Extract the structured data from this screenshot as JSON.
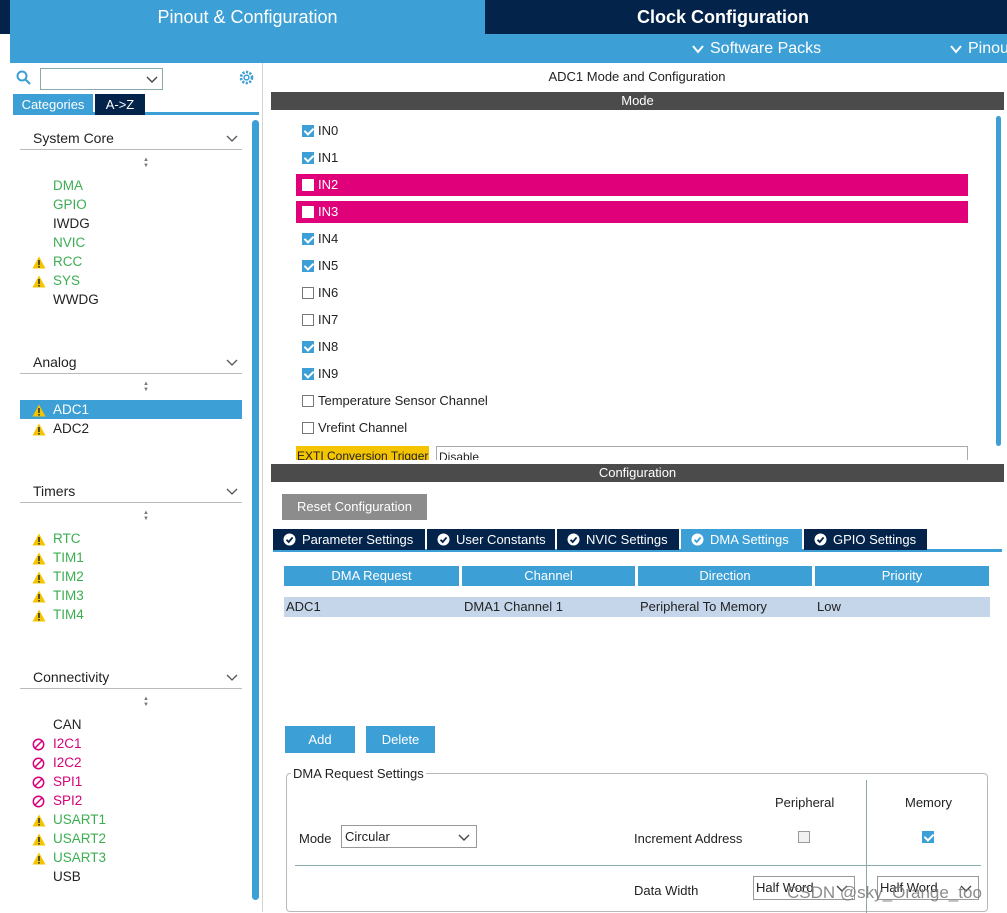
{
  "top_tabs": {
    "pinout": "Pinout & Configuration",
    "clock": "Clock Configuration",
    "project": ""
  },
  "sub_bar": {
    "software_packs": "Software Packs",
    "pinout": "Pinout"
  },
  "left": {
    "search": {
      "value": ""
    },
    "tabs": {
      "categories": "Categories",
      "az": "A->Z"
    },
    "groups": [
      {
        "title": "System Core",
        "items": [
          {
            "label": "DMA",
            "color": "green",
            "icon": ""
          },
          {
            "label": "GPIO",
            "color": "green",
            "icon": ""
          },
          {
            "label": "IWDG",
            "color": "black",
            "icon": ""
          },
          {
            "label": "NVIC",
            "color": "green",
            "icon": ""
          },
          {
            "label": "RCC",
            "color": "green",
            "icon": "warning-icon"
          },
          {
            "label": "SYS",
            "color": "green",
            "icon": "warning-icon"
          },
          {
            "label": "WWDG",
            "color": "black",
            "icon": ""
          }
        ]
      },
      {
        "title": "Analog",
        "items": [
          {
            "label": "ADC1",
            "color": "selected",
            "icon": "warning-icon"
          },
          {
            "label": "ADC2",
            "color": "black",
            "icon": "warning-icon"
          }
        ]
      },
      {
        "title": "Timers",
        "items": [
          {
            "label": "RTC",
            "color": "green",
            "icon": "warning-icon"
          },
          {
            "label": "TIM1",
            "color": "green",
            "icon": "warning-icon"
          },
          {
            "label": "TIM2",
            "color": "green",
            "icon": "warning-icon"
          },
          {
            "label": "TIM3",
            "color": "green",
            "icon": "warning-icon"
          },
          {
            "label": "TIM4",
            "color": "green",
            "icon": "warning-icon"
          }
        ]
      },
      {
        "title": "Connectivity",
        "items": [
          {
            "label": "CAN",
            "color": "black",
            "icon": ""
          },
          {
            "label": "I2C1",
            "color": "magenta",
            "icon": "blocked-icon"
          },
          {
            "label": "I2C2",
            "color": "magenta",
            "icon": "blocked-icon"
          },
          {
            "label": "SPI1",
            "color": "magenta",
            "icon": "blocked-icon"
          },
          {
            "label": "SPI2",
            "color": "magenta",
            "icon": "blocked-icon"
          },
          {
            "label": "USART1",
            "color": "green",
            "icon": "warning-icon"
          },
          {
            "label": "USART2",
            "color": "green",
            "icon": "warning-icon"
          },
          {
            "label": "USART3",
            "color": "green",
            "icon": "warning-icon"
          },
          {
            "label": "USB",
            "color": "black",
            "icon": ""
          }
        ]
      }
    ]
  },
  "right": {
    "title": "ADC1 Mode and Configuration",
    "mode_bar": "Mode",
    "channels": [
      {
        "label": "IN0",
        "checked": true,
        "conflict": false
      },
      {
        "label": "IN1",
        "checked": true,
        "conflict": false
      },
      {
        "label": "IN2",
        "checked": false,
        "conflict": true
      },
      {
        "label": "IN3",
        "checked": false,
        "conflict": true
      },
      {
        "label": "IN4",
        "checked": true,
        "conflict": false
      },
      {
        "label": "IN5",
        "checked": true,
        "conflict": false
      },
      {
        "label": "IN6",
        "checked": false,
        "conflict": false
      },
      {
        "label": "IN7",
        "checked": false,
        "conflict": false
      },
      {
        "label": "IN8",
        "checked": true,
        "conflict": false
      },
      {
        "label": "IN9",
        "checked": true,
        "conflict": false
      },
      {
        "label": "Temperature Sensor Channel",
        "checked": false,
        "conflict": false
      },
      {
        "label": "Vrefint Channel",
        "checked": false,
        "conflict": false
      }
    ],
    "exti": {
      "label": "EXTI Conversion Trigger",
      "value": "Disable"
    },
    "config_bar": "Configuration",
    "reset_button": "Reset Configuration",
    "config_tabs": [
      {
        "label": "Parameter Settings",
        "active": false
      },
      {
        "label": "User Constants",
        "active": false
      },
      {
        "label": "NVIC Settings",
        "active": false
      },
      {
        "label": "DMA Settings",
        "active": true
      },
      {
        "label": "GPIO Settings",
        "active": false
      }
    ],
    "dma_table": {
      "headers": [
        "DMA Request",
        "Channel",
        "Direction",
        "Priority"
      ],
      "rows": [
        [
          "ADC1",
          "DMA1 Channel 1",
          "Peripheral To Memory",
          "Low"
        ]
      ]
    },
    "add_button": "Add",
    "delete_button": "Delete",
    "dma_request_settings": {
      "legend": "DMA Request Settings",
      "peripheral_header": "Peripheral",
      "memory_header": "Memory",
      "mode_label": "Mode",
      "mode_value": "Circular",
      "increment_label": "Increment Address",
      "peripheral_increment": false,
      "memory_increment": true,
      "width_label": "Data Width",
      "peripheral_width": "Half Word",
      "memory_width": "Half Word"
    }
  },
  "watermark": "CSDN @sky_Orange_too",
  "colors": {
    "accent": "#3c9fd6",
    "dark_navy": "#03234b",
    "conflict": "#e0007a",
    "ok_green": "#3cae52",
    "warning": "#f5c400"
  }
}
